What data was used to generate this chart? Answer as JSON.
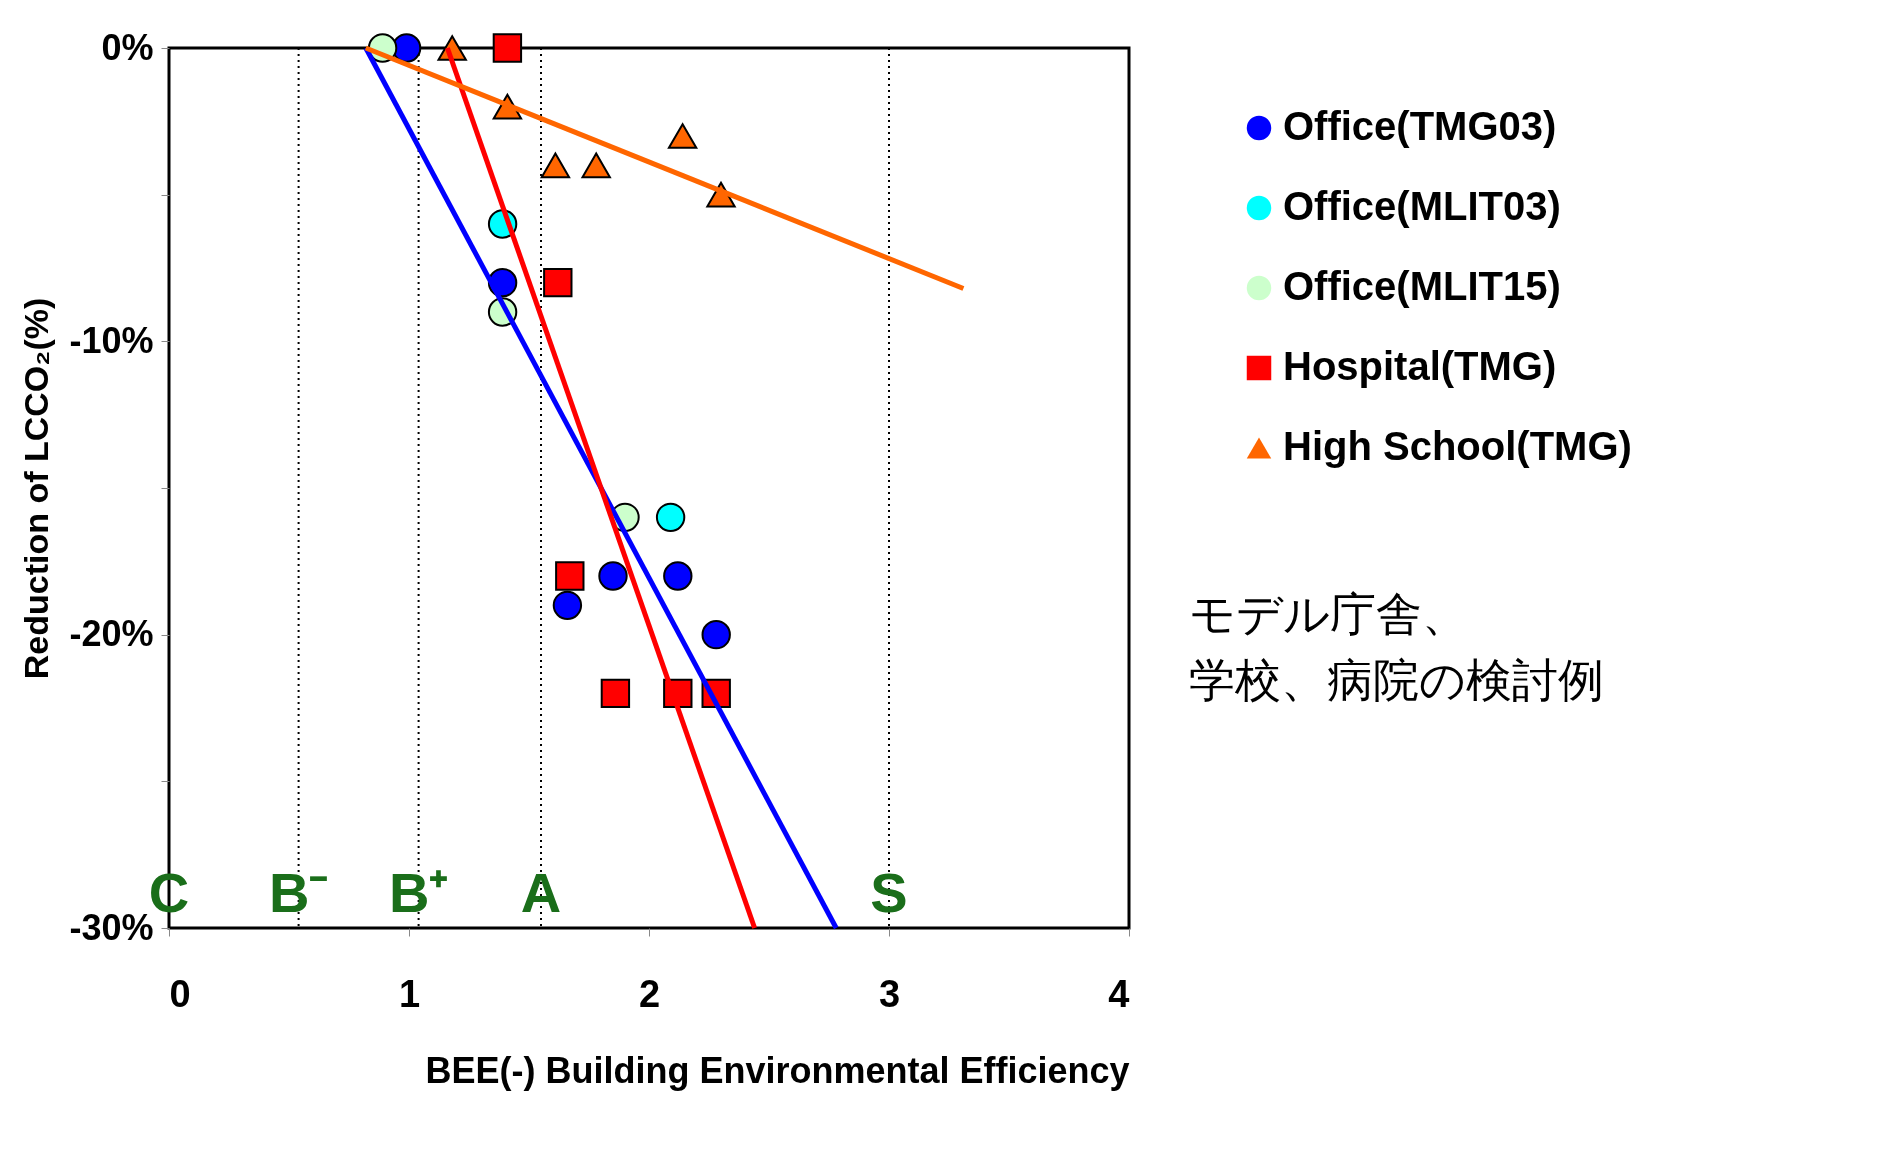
{
  "chart_data": {
    "type": "scatter",
    "xlabel": "BEE(-) Building Environmental Efficiency",
    "ylabel": "Reduction of LCCO₂(%)",
    "xlim": [
      0,
      4
    ],
    "xticks": [
      0,
      1,
      2,
      3,
      4
    ],
    "ylim": [
      -30,
      0
    ],
    "yticks": [
      {
        "value": 0,
        "label": "0%"
      },
      {
        "value": -5,
        "label": null
      },
      {
        "value": -10,
        "label": "-10%"
      },
      {
        "value": -15,
        "label": null
      },
      {
        "value": -20,
        "label": "-20%"
      },
      {
        "value": -25,
        "label": null
      },
      {
        "value": -30,
        "label": "-30%"
      }
    ],
    "grid": false,
    "legend": "right",
    "series": [
      {
        "name": "Office(TMG03)",
        "marker": "circle",
        "color": "#0000ff",
        "x": [
          0.99,
          1.39,
          1.66,
          1.85,
          2.12,
          2.28
        ],
        "values": [
          0,
          -8,
          -19,
          -18,
          -18,
          -20
        ]
      },
      {
        "name": "Office(MLIT03)",
        "marker": "circle",
        "color": "#00ffff",
        "x": [
          1.39,
          2.09
        ],
        "values": [
          -6,
          -16
        ]
      },
      {
        "name": "Office(MLIT15)",
        "marker": "circle",
        "color": "#ccffcc",
        "x": [
          0.89,
          1.39,
          1.9
        ],
        "values": [
          0,
          -9,
          -16
        ]
      },
      {
        "name": "Hospital(TMG)",
        "marker": "square",
        "color": "#ff0000",
        "x": [
          1.41,
          1.62,
          1.67,
          1.86,
          2.12,
          2.28
        ],
        "values": [
          0,
          -8,
          -18,
          -22,
          -22,
          -22
        ]
      },
      {
        "name": "High School(TMG)",
        "marker": "triangle",
        "color": "#ff6600",
        "x": [
          1.18,
          1.41,
          1.61,
          1.78,
          2.14,
          2.3
        ],
        "values": [
          0,
          -2,
          -4,
          -4,
          -3,
          -5
        ]
      },
      {
        "type": "line",
        "color": "#0000ff",
        "x": [
          0.82,
          2.78
        ],
        "values": [
          0,
          -30
        ]
      },
      {
        "type": "line",
        "color": "#ff0000",
        "x": [
          1.16,
          2.44
        ],
        "values": [
          0,
          -30
        ]
      },
      {
        "type": "line",
        "color": "#ff6600",
        "x": [
          0.82,
          3.31
        ],
        "values": [
          0,
          -8.2
        ]
      }
    ],
    "ref_lines": [
      {
        "axis": "x",
        "value": 0.54,
        "line_style": "dotted",
        "color": "#000000"
      },
      {
        "axis": "x",
        "value": 1.04,
        "line_style": "dotted",
        "color": "#000000"
      },
      {
        "axis": "x",
        "value": 1.55,
        "line_style": "dotted",
        "color": "#000000"
      },
      {
        "axis": "x",
        "value": 3.0,
        "line_style": "dotted",
        "color": "#000000"
      }
    ],
    "annotations": [
      "C",
      "B⁻",
      "B⁺",
      "A",
      "S",
      "モデル庁舎、学校、病院の検討例"
    ]
  }
}
